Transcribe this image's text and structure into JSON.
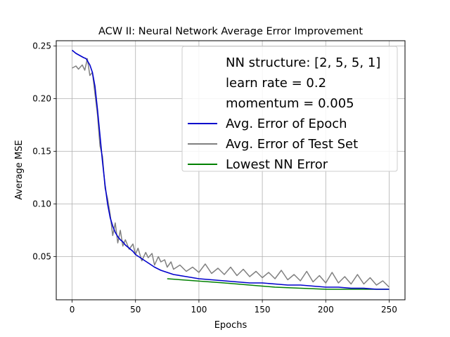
{
  "chart_data": {
    "type": "line",
    "title": "ACW II: Neural Network Average Error Improvement",
    "xlabel": "Epochs",
    "ylabel": "Average MSE",
    "xlim": [
      -12.5,
      262.5
    ],
    "ylim": [
      0.009,
      0.255
    ],
    "xticks": [
      0,
      50,
      100,
      150,
      200,
      250
    ],
    "xtick_labels": [
      "0",
      "50",
      "100",
      "150",
      "200",
      "250"
    ],
    "yticks": [
      0.05,
      0.1,
      0.15,
      0.2,
      0.25
    ],
    "ytick_labels": [
      "0.05",
      "0.10",
      "0.15",
      "0.20",
      "0.25"
    ],
    "grid": true,
    "legend_position": "upper-right",
    "legend_header": [
      "NN structure: [2, 5, 5, 1]",
      "learn rate = 0.2",
      "momentum = 0.005"
    ],
    "series": [
      {
        "name": "Avg. Error of Epoch",
        "color": "#0000cc",
        "x": [
          0,
          3,
          6,
          9,
          11,
          12,
          14,
          16,
          18,
          20,
          22,
          24,
          26,
          28,
          30,
          32,
          34,
          36,
          38,
          40,
          42,
          45,
          48,
          50,
          55,
          60,
          65,
          70,
          75,
          80,
          90,
          100,
          110,
          120,
          130,
          140,
          150,
          160,
          170,
          180,
          190,
          200,
          210,
          220,
          230,
          240,
          250
        ],
        "y": [
          0.246,
          0.243,
          0.241,
          0.239,
          0.238,
          0.236,
          0.232,
          0.225,
          0.212,
          0.19,
          0.165,
          0.14,
          0.118,
          0.1,
          0.087,
          0.079,
          0.073,
          0.069,
          0.066,
          0.064,
          0.061,
          0.058,
          0.055,
          0.052,
          0.048,
          0.044,
          0.04,
          0.037,
          0.035,
          0.033,
          0.031,
          0.029,
          0.028,
          0.027,
          0.026,
          0.025,
          0.025,
          0.024,
          0.023,
          0.023,
          0.022,
          0.021,
          0.021,
          0.02,
          0.02,
          0.019,
          0.019
        ]
      },
      {
        "name": "Avg. Error of Test Set",
        "color": "#808080",
        "x": [
          0,
          3,
          5,
          8,
          10,
          12,
          14,
          16,
          18,
          20,
          22,
          24,
          26,
          28,
          30,
          32,
          34,
          36,
          38,
          40,
          42,
          45,
          48,
          50,
          52,
          55,
          58,
          60,
          63,
          65,
          68,
          70,
          73,
          75,
          78,
          80,
          85,
          90,
          95,
          100,
          105,
          110,
          115,
          120,
          125,
          130,
          135,
          140,
          145,
          150,
          155,
          160,
          165,
          170,
          175,
          180,
          185,
          190,
          195,
          200,
          205,
          210,
          215,
          220,
          225,
          230,
          235,
          240,
          245,
          250
        ],
        "y": [
          0.229,
          0.231,
          0.228,
          0.232,
          0.227,
          0.238,
          0.222,
          0.225,
          0.205,
          0.185,
          0.155,
          0.145,
          0.115,
          0.105,
          0.09,
          0.07,
          0.082,
          0.063,
          0.075,
          0.06,
          0.066,
          0.057,
          0.062,
          0.052,
          0.058,
          0.046,
          0.054,
          0.049,
          0.053,
          0.042,
          0.05,
          0.045,
          0.047,
          0.04,
          0.045,
          0.038,
          0.042,
          0.036,
          0.04,
          0.035,
          0.043,
          0.034,
          0.039,
          0.033,
          0.04,
          0.032,
          0.038,
          0.031,
          0.036,
          0.03,
          0.035,
          0.029,
          0.037,
          0.028,
          0.033,
          0.027,
          0.036,
          0.026,
          0.032,
          0.025,
          0.035,
          0.025,
          0.031,
          0.024,
          0.033,
          0.024,
          0.03,
          0.023,
          0.027,
          0.021
        ]
      },
      {
        "name": "Lowest NN Error",
        "color": "#008000",
        "x": [
          75,
          120,
          160,
          200,
          250
        ],
        "y": [
          0.029,
          0.025,
          0.021,
          0.019,
          0.019
        ]
      }
    ]
  }
}
